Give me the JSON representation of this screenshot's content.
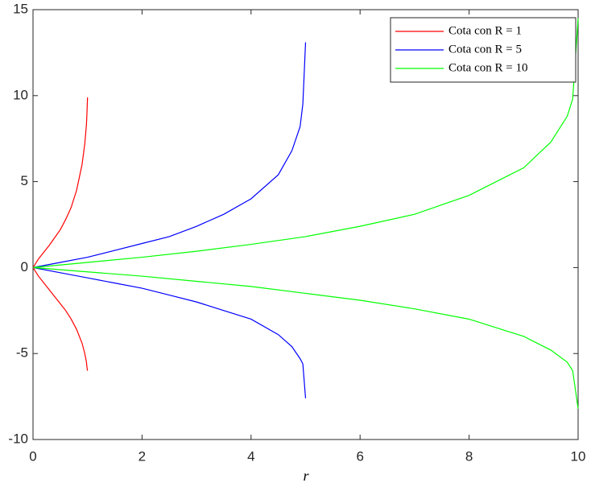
{
  "chart_data": {
    "type": "line",
    "x_label": "r",
    "xlim": [
      0,
      10
    ],
    "xticks": [
      0,
      2,
      4,
      6,
      8,
      10
    ],
    "ylim": [
      -10,
      15
    ],
    "yticks": [
      -10,
      -5,
      0,
      5,
      10,
      15
    ],
    "legend": "upper-right",
    "series": [
      {
        "name": "Cota con R = 1",
        "color": "#ff0000",
        "x": [
          0,
          0.1,
          0.2,
          0.3,
          0.4,
          0.5,
          0.6,
          0.7,
          0.8,
          0.9,
          0.95,
          0.98,
          0.99,
          1
        ],
        "values": [
          0,
          0.5,
          0.9,
          1.3,
          1.75,
          2.2,
          2.8,
          3.5,
          4.5,
          6.0,
          7.2,
          8.3,
          9.0,
          9.9
        ],
        "lower": [
          0,
          -0.5,
          -0.9,
          -1.3,
          -1.7,
          -2.1,
          -2.5,
          -3.0,
          -3.6,
          -4.4,
          -5.0,
          -5.5,
          -5.8,
          -6.0
        ]
      },
      {
        "name": "Cota con R = 5",
        "color": "#0000ff",
        "x": [
          0,
          0.5,
          1,
          1.5,
          2,
          2.5,
          3,
          3.5,
          4,
          4.5,
          4.75,
          4.9,
          4.95,
          5
        ],
        "values": [
          0,
          0.3,
          0.6,
          1.0,
          1.4,
          1.8,
          2.4,
          3.1,
          4.0,
          5.4,
          6.8,
          8.2,
          9.5,
          13.1
        ],
        "lower": [
          0,
          -0.3,
          -0.6,
          -0.9,
          -1.2,
          -1.6,
          -2.0,
          -2.5,
          -3.0,
          -3.9,
          -4.6,
          -5.3,
          -5.6,
          -7.6
        ]
      },
      {
        "name": "Cota con R = 10",
        "color": "#00ff00",
        "x": [
          0,
          1,
          2,
          3,
          4,
          5,
          6,
          7,
          8,
          9,
          9.5,
          9.8,
          9.9,
          10
        ],
        "values": [
          0,
          0.3,
          0.6,
          0.95,
          1.35,
          1.8,
          2.4,
          3.1,
          4.2,
          5.8,
          7.3,
          8.8,
          9.8,
          14.5
        ],
        "lower": [
          0,
          -0.25,
          -0.5,
          -0.8,
          -1.1,
          -1.5,
          -1.9,
          -2.4,
          -3.0,
          -4.0,
          -4.8,
          -5.5,
          -6.0,
          -8.2
        ]
      }
    ]
  }
}
